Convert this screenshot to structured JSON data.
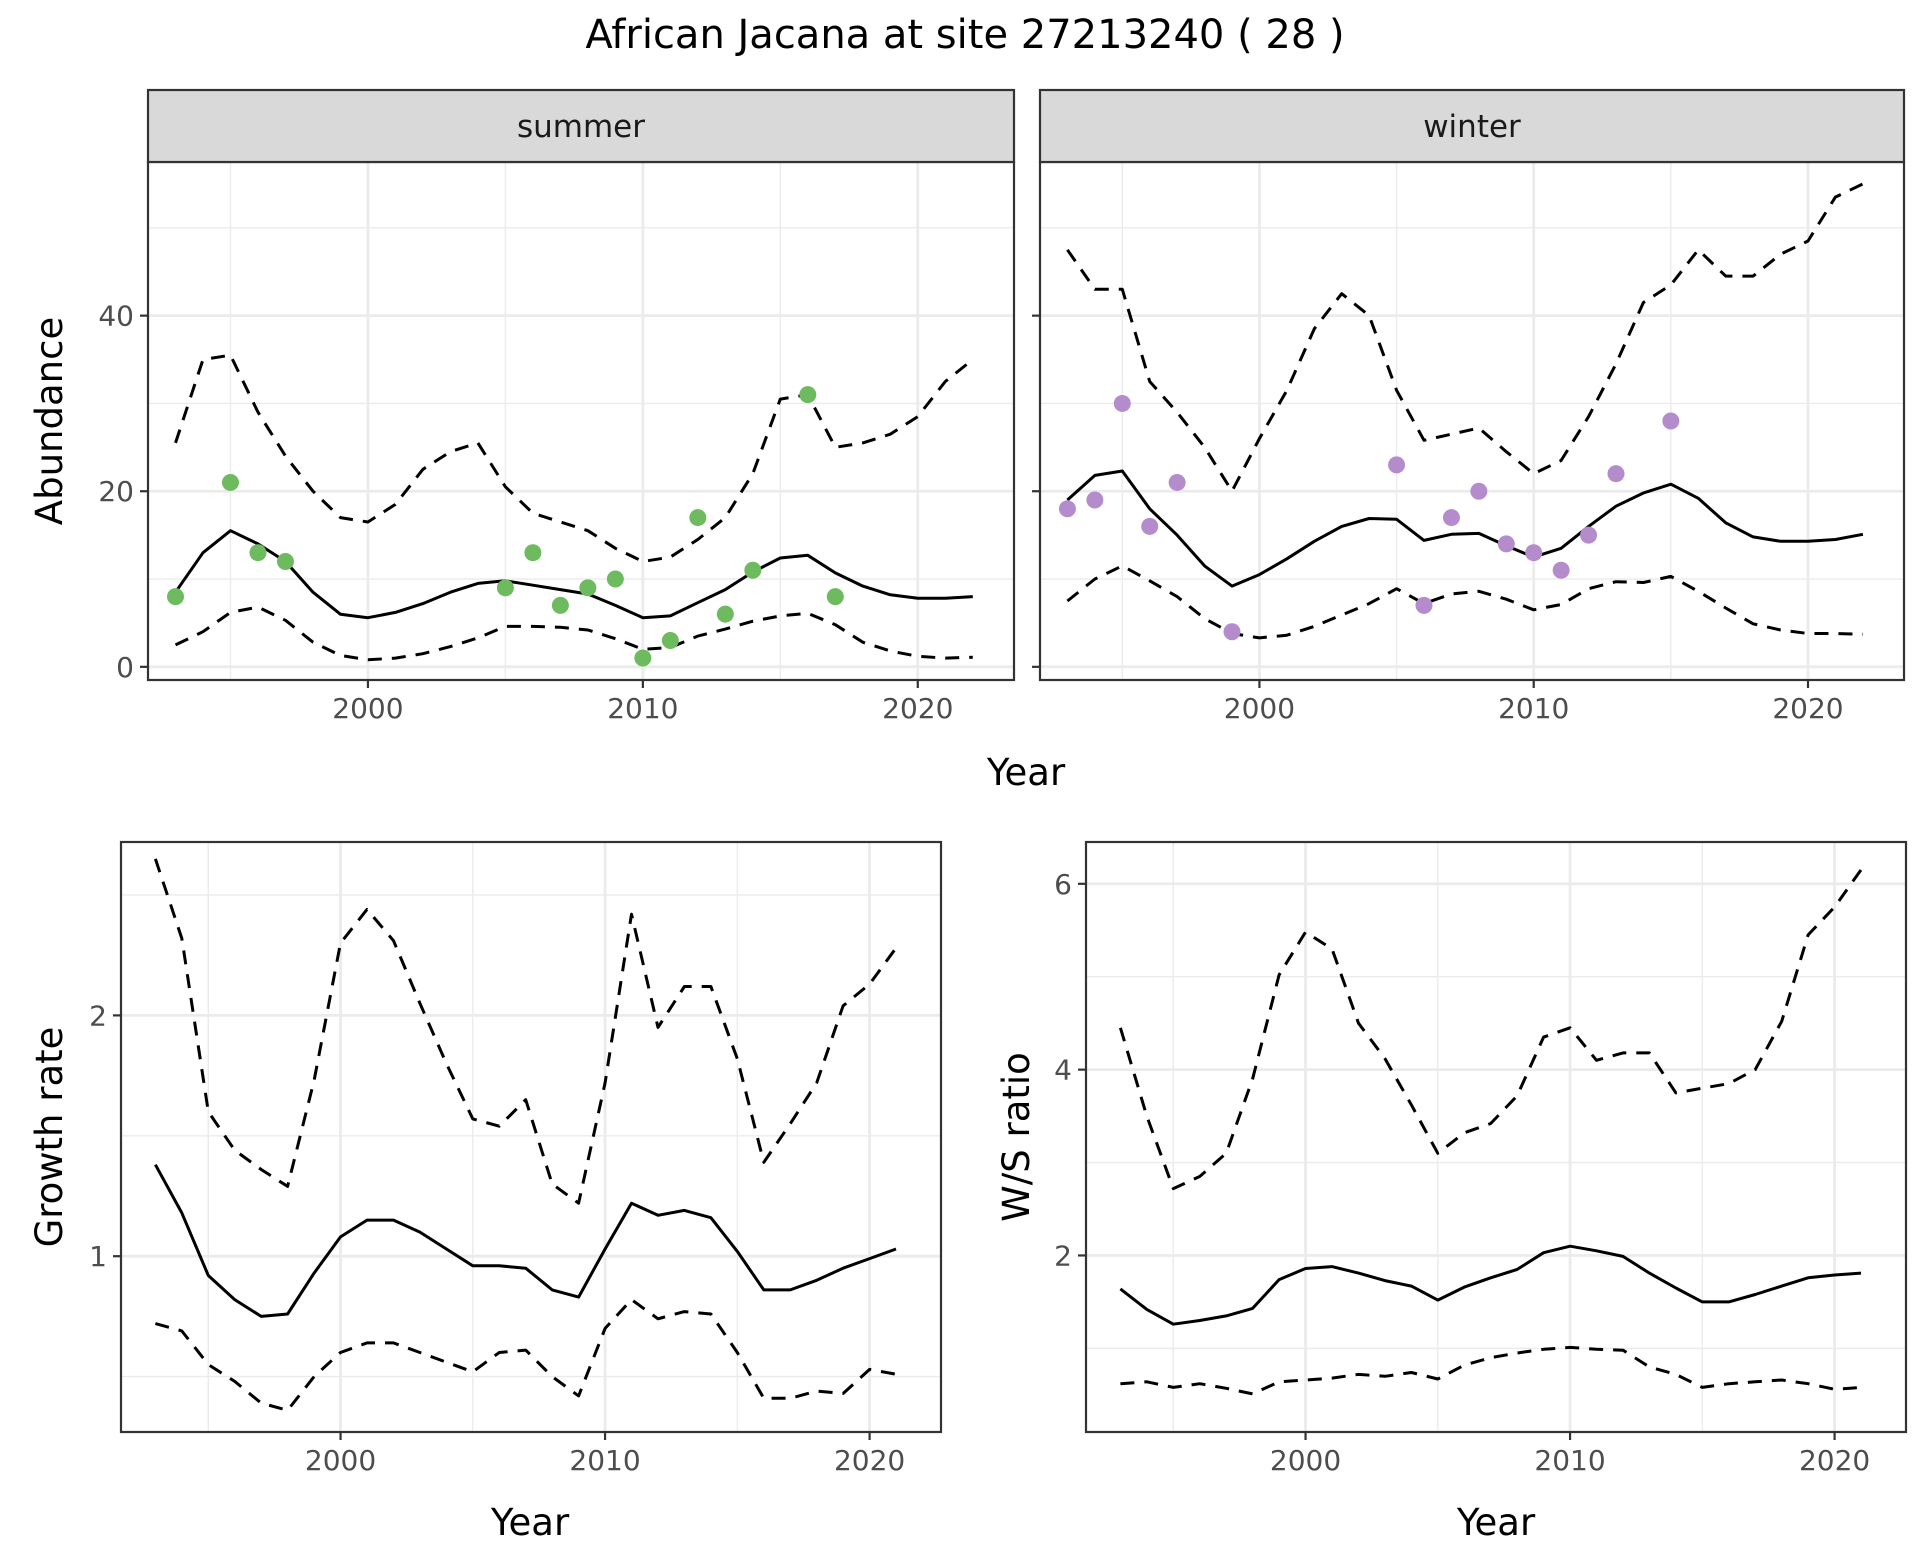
{
  "title": "African Jacana at site 27213240 ( 28 )",
  "colors": {
    "summer_points": "#6dbb5e",
    "winter_points": "#b48ccc",
    "line": "#000000",
    "strip": "#d9d9d9",
    "grid": "#ebebeb"
  },
  "chart_data": [
    {
      "type": "line",
      "panel": "summer",
      "facet_label": "summer",
      "ylabel": "Abundance",
      "xlabel": "Year",
      "xlim": [
        1992,
        2023.5
      ],
      "ylim": [
        -1.5,
        57.5
      ],
      "x_ticks": [
        2000,
        2010,
        2020
      ],
      "y_ticks": [
        0,
        20,
        40
      ],
      "show_y_tick_labels": true,
      "grid": true,
      "points": {
        "x": [
          1993,
          1995,
          1996,
          1997,
          2005,
          2006,
          2007,
          2008,
          2009,
          2010,
          2011,
          2012,
          2013,
          2014,
          2016,
          2017
        ],
        "y": [
          8,
          21,
          13,
          12,
          9,
          13,
          7,
          9,
          10,
          1,
          3,
          17,
          6,
          11,
          31,
          8
        ]
      },
      "series": [
        {
          "style": "solid",
          "x": [
            1993,
            1994,
            1995,
            1996,
            1997,
            1998,
            1999,
            2000,
            2001,
            2002,
            2003,
            2004,
            2005,
            2006,
            2007,
            2008,
            2009,
            2010,
            2011,
            2012,
            2013,
            2014,
            2015,
            2016,
            2017,
            2018,
            2019,
            2020,
            2021,
            2022
          ],
          "y": [
            8.5,
            13,
            15.5,
            14,
            12,
            8.5,
            6,
            5.6,
            6.2,
            7.2,
            8.5,
            9.5,
            9.8,
            9.3,
            8.8,
            8.3,
            7,
            5.6,
            5.8,
            7.3,
            8.8,
            10.8,
            12.4,
            12.7,
            10.7,
            9.2,
            8.2,
            7.8,
            7.8,
            8
          ]
        },
        {
          "style": "dashed",
          "x": [
            1993,
            1994,
            1995,
            1996,
            1997,
            1998,
            1999,
            2000,
            2001,
            2002,
            2003,
            2004,
            2005,
            2006,
            2007,
            2008,
            2009,
            2010,
            2011,
            2012,
            2013,
            2014,
            2015,
            2016,
            2017,
            2018,
            2019,
            2020,
            2021,
            2022
          ],
          "y": [
            25.5,
            35,
            35.5,
            29,
            24,
            20,
            17,
            16.5,
            18.5,
            22.5,
            24.5,
            25.5,
            20.5,
            17.5,
            16.5,
            15.5,
            13.5,
            12,
            12.5,
            14.5,
            17,
            22,
            30.5,
            31,
            25,
            25.5,
            26.5,
            28.5,
            32.5,
            35
          ]
        },
        {
          "style": "dashed",
          "x": [
            1993,
            1994,
            1995,
            1996,
            1997,
            1998,
            1999,
            2000,
            2001,
            2002,
            2003,
            2004,
            2005,
            2006,
            2007,
            2008,
            2009,
            2010,
            2011,
            2012,
            2013,
            2014,
            2015,
            2016,
            2017,
            2018,
            2019,
            2020,
            2021,
            2022
          ],
          "y": [
            2.5,
            4,
            6.2,
            6.8,
            5.3,
            2.8,
            1.3,
            0.8,
            1,
            1.5,
            2.3,
            3.3,
            4.6,
            4.6,
            4.5,
            4.2,
            3.2,
            2,
            2.2,
            3.5,
            4.3,
            5.2,
            5.8,
            6.1,
            4.8,
            2.8,
            1.8,
            1.2,
            1.0,
            1.1
          ]
        }
      ]
    },
    {
      "type": "line",
      "panel": "winter",
      "facet_label": "winter",
      "xlabel": "Year",
      "xlim": [
        1992,
        2023.5
      ],
      "ylim": [
        -1.5,
        57.5
      ],
      "x_ticks": [
        2000,
        2010,
        2020
      ],
      "y_ticks": [
        0,
        20,
        40
      ],
      "show_y_tick_labels": false,
      "grid": true,
      "points": {
        "x": [
          1993,
          1994,
          1995,
          1996,
          1997,
          1999,
          2005,
          2006,
          2007,
          2008,
          2009,
          2010,
          2011,
          2012,
          2013,
          2015
        ],
        "y": [
          18,
          19,
          30,
          16,
          21,
          4,
          23,
          7,
          17,
          20,
          14,
          13,
          11,
          15,
          22,
          28
        ]
      },
      "series": [
        {
          "style": "solid",
          "x": [
            1993,
            1994,
            1995,
            1996,
            1997,
            1998,
            1999,
            2000,
            2001,
            2002,
            2003,
            2004,
            2005,
            2006,
            2007,
            2008,
            2009,
            2010,
            2011,
            2012,
            2013,
            2014,
            2015,
            2016,
            2017,
            2018,
            2019,
            2020,
            2021,
            2022
          ],
          "y": [
            19,
            21.8,
            22.3,
            18,
            15,
            11.5,
            9.2,
            10.5,
            12.3,
            14.3,
            16,
            16.9,
            16.8,
            14.4,
            15.1,
            15.2,
            13.8,
            12.5,
            13.5,
            16,
            18.3,
            19.8,
            20.8,
            19.2,
            16.4,
            14.8,
            14.3,
            14.3,
            14.5,
            15.1
          ]
        },
        {
          "style": "dashed",
          "x": [
            1993,
            1994,
            1995,
            1996,
            1997,
            1998,
            1999,
            2000,
            2001,
            2002,
            2003,
            2004,
            2005,
            2006,
            2007,
            2008,
            2009,
            2010,
            2011,
            2012,
            2013,
            2014,
            2015,
            2016,
            2017,
            2018,
            2019,
            2020,
            2021,
            2022
          ],
          "y": [
            47.5,
            43,
            43,
            32.5,
            29,
            25,
            20,
            26,
            31.5,
            38.5,
            42.5,
            40,
            31.5,
            25.8,
            26.5,
            27.2,
            24.5,
            22,
            23.5,
            28.5,
            34.5,
            41.5,
            43.5,
            47.5,
            44.5,
            44.5,
            47,
            48.5,
            53.5,
            55
          ]
        },
        {
          "style": "dashed",
          "x": [
            1993,
            1994,
            1995,
            1996,
            1997,
            1998,
            1999,
            2000,
            2001,
            2002,
            2003,
            2004,
            2005,
            2006,
            2007,
            2008,
            2009,
            2010,
            2011,
            2012,
            2013,
            2014,
            2015,
            2016,
            2017,
            2018,
            2019,
            2020,
            2021,
            2022
          ],
          "y": [
            7.5,
            10,
            11.5,
            9.8,
            8,
            5.5,
            3.8,
            3.3,
            3.6,
            4.6,
            5.9,
            7.2,
            8.9,
            7.2,
            8.3,
            8.6,
            7.7,
            6.5,
            7.1,
            8.9,
            9.7,
            9.6,
            10.3,
            8.6,
            6.7,
            4.9,
            4.2,
            3.8,
            3.8,
            3.7
          ]
        }
      ]
    },
    {
      "type": "line",
      "panel": "growth",
      "ylabel": "Growth rate",
      "xlabel": "Year",
      "xlim": [
        1991.7,
        2022.7
      ],
      "ylim": [
        0.27,
        2.72
      ],
      "x_ticks": [
        2000,
        2010,
        2020
      ],
      "y_ticks": [
        1,
        2
      ],
      "show_y_tick_labels": true,
      "grid": true,
      "series": [
        {
          "style": "solid",
          "x": [
            1993,
            1994,
            1995,
            1996,
            1997,
            1998,
            1999,
            2000,
            2001,
            2002,
            2003,
            2004,
            2005,
            2006,
            2007,
            2008,
            2009,
            2010,
            2011,
            2012,
            2013,
            2014,
            2015,
            2016,
            2017,
            2018,
            2019,
            2020,
            2021
          ],
          "y": [
            1.38,
            1.18,
            0.92,
            0.82,
            0.75,
            0.76,
            0.93,
            1.08,
            1.15,
            1.15,
            1.1,
            1.03,
            0.96,
            0.96,
            0.95,
            0.86,
            0.83,
            1.03,
            1.22,
            1.17,
            1.19,
            1.16,
            1.02,
            0.86,
            0.86,
            0.9,
            0.95,
            0.99,
            1.03
          ]
        },
        {
          "style": "dashed",
          "x": [
            1993,
            1994,
            1995,
            1996,
            1997,
            1998,
            1999,
            2000,
            2001,
            2002,
            2003,
            2004,
            2005,
            2006,
            2007,
            2008,
            2009,
            2010,
            2011,
            2012,
            2013,
            2014,
            2015,
            2016,
            2017,
            2018,
            2019,
            2020,
            2021
          ],
          "y": [
            2.65,
            2.32,
            1.6,
            1.44,
            1.36,
            1.29,
            1.73,
            2.3,
            2.44,
            2.31,
            2.05,
            1.8,
            1.57,
            1.54,
            1.65,
            1.3,
            1.22,
            1.72,
            2.42,
            1.95,
            2.12,
            2.12,
            1.82,
            1.39,
            1.55,
            1.72,
            2.04,
            2.13,
            2.28
          ]
        },
        {
          "style": "dashed",
          "x": [
            1993,
            1994,
            1995,
            1996,
            1997,
            1998,
            1999,
            2000,
            2001,
            2002,
            2003,
            2004,
            2005,
            2006,
            2007,
            2008,
            2009,
            2010,
            2011,
            2012,
            2013,
            2014,
            2015,
            2016,
            2017,
            2018,
            2019,
            2020,
            2021
          ],
          "y": [
            0.72,
            0.69,
            0.55,
            0.48,
            0.39,
            0.36,
            0.5,
            0.6,
            0.64,
            0.64,
            0.6,
            0.56,
            0.52,
            0.6,
            0.61,
            0.5,
            0.42,
            0.7,
            0.82,
            0.74,
            0.77,
            0.76,
            0.6,
            0.41,
            0.41,
            0.44,
            0.43,
            0.53,
            0.51
          ]
        }
      ]
    },
    {
      "type": "line",
      "panel": "ratio",
      "ylabel": "W/S ratio",
      "xlabel": "Year",
      "xlim": [
        1991.7,
        2022.7
      ],
      "ylim": [
        0.1,
        6.45
      ],
      "x_ticks": [
        2000,
        2010,
        2020
      ],
      "y_ticks": [
        2,
        4,
        6
      ],
      "show_y_tick_labels": true,
      "grid": true,
      "series": [
        {
          "style": "solid",
          "x": [
            1993,
            1994,
            1995,
            1996,
            1997,
            1998,
            1999,
            2000,
            2001,
            2002,
            2003,
            2004,
            2005,
            2006,
            2007,
            2008,
            2009,
            2010,
            2011,
            2012,
            2013,
            2014,
            2015,
            2016,
            2017,
            2018,
            2019,
            2020,
            2021
          ],
          "y": [
            1.64,
            1.42,
            1.26,
            1.3,
            1.35,
            1.43,
            1.74,
            1.86,
            1.88,
            1.81,
            1.73,
            1.67,
            1.52,
            1.66,
            1.76,
            1.85,
            2.03,
            2.1,
            2.05,
            1.99,
            1.81,
            1.65,
            1.5,
            1.5,
            1.58,
            1.67,
            1.76,
            1.79,
            1.81
          ]
        },
        {
          "style": "dashed",
          "x": [
            1993,
            1994,
            1995,
            1996,
            1997,
            1998,
            1999,
            2000,
            2001,
            2002,
            2003,
            2004,
            2005,
            2006,
            2007,
            2008,
            2009,
            2010,
            2011,
            2012,
            2013,
            2014,
            2015,
            2016,
            2017,
            2018,
            2019,
            2020,
            2021
          ],
          "y": [
            4.45,
            3.5,
            2.72,
            2.85,
            3.1,
            3.9,
            5.02,
            5.48,
            5.3,
            4.5,
            4.12,
            3.62,
            3.1,
            3.32,
            3.42,
            3.72,
            4.35,
            4.45,
            4.1,
            4.18,
            4.18,
            3.75,
            3.8,
            3.85,
            4.0,
            4.52,
            5.45,
            5.75,
            6.15
          ]
        },
        {
          "style": "dashed",
          "x": [
            1993,
            1994,
            1995,
            1996,
            1997,
            1998,
            1999,
            2000,
            2001,
            2002,
            2003,
            2004,
            2005,
            2006,
            2007,
            2008,
            2009,
            2010,
            2011,
            2012,
            2013,
            2014,
            2015,
            2016,
            2017,
            2018,
            2019,
            2020,
            2021
          ],
          "y": [
            0.62,
            0.64,
            0.58,
            0.62,
            0.57,
            0.51,
            0.64,
            0.66,
            0.68,
            0.72,
            0.7,
            0.74,
            0.67,
            0.82,
            0.9,
            0.95,
            0.99,
            1.01,
            0.99,
            0.98,
            0.8,
            0.72,
            0.58,
            0.62,
            0.64,
            0.66,
            0.62,
            0.56,
            0.58
          ]
        }
      ]
    }
  ]
}
